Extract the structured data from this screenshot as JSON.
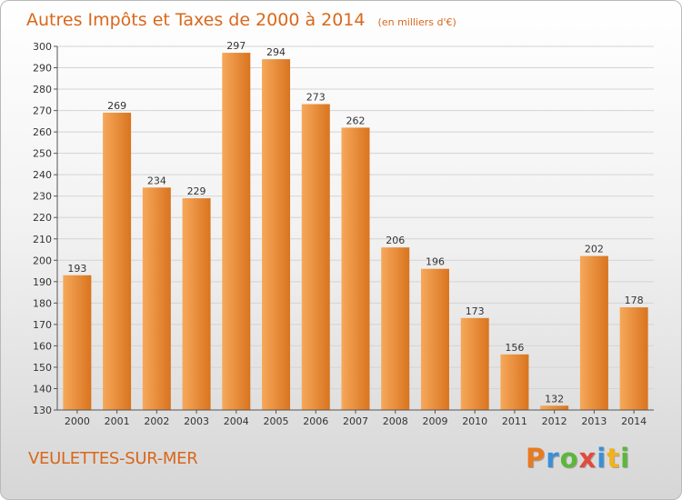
{
  "header": {
    "title": "Autres Impôts et Taxes de 2000 à 2014",
    "unit": "(en milliers d'€)"
  },
  "footer": {
    "commune": "VEULETTES-SUR-MER",
    "logo": "Proxiti",
    "logo_colors": [
      "#e87a1f",
      "#3b8fd6",
      "#5bb73a",
      "#e14b3c",
      "#3b8fd6",
      "#f2b21c",
      "#5bb73a"
    ]
  },
  "colors": {
    "bar_light": "#f6a85a",
    "bar_dark": "#d9741f",
    "title": "#d9671a",
    "grid": "#d4d4d4"
  },
  "chart_data": {
    "type": "bar",
    "title": "Autres Impôts et Taxes de 2000 à 2014",
    "subtitle": "(en milliers d'€)",
    "categories": [
      "2000",
      "2001",
      "2002",
      "2003",
      "2004",
      "2005",
      "2006",
      "2007",
      "2008",
      "2009",
      "2010",
      "2011",
      "2012",
      "2013",
      "2014"
    ],
    "values": [
      193,
      269,
      234,
      229,
      297,
      294,
      273,
      262,
      206,
      196,
      173,
      156,
      132,
      202,
      178
    ],
    "xlabel": "",
    "ylabel": "",
    "ylim": [
      130,
      300
    ],
    "yticks": [
      130,
      140,
      150,
      160,
      170,
      180,
      190,
      200,
      210,
      220,
      230,
      240,
      250,
      260,
      270,
      280,
      290,
      300
    ],
    "grid": true,
    "data_labels": true
  }
}
